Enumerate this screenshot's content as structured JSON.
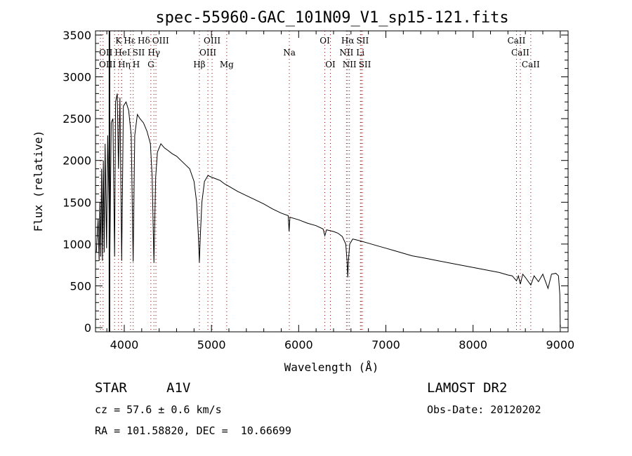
{
  "chart_data": {
    "type": "line",
    "title": "spec-55960-GAC_101N09_V1_sp15-121.fits",
    "xlabel": "Wavelength (Å)",
    "ylabel": "Flux (relative)",
    "xlim": [
      3670,
      9090
    ],
    "ylim": [
      -50,
      3550
    ],
    "x_ticks": [
      4000,
      5000,
      6000,
      7000,
      8000,
      9000
    ],
    "y_ticks": [
      0,
      500,
      1000,
      1500,
      2000,
      2500,
      3000,
      3500
    ],
    "grid": false,
    "line_color": "#000000",
    "marker_color": "#8b0000",
    "solid_line_wavelength": 3830,
    "series": [
      {
        "name": "spectrum",
        "x": [
          3680,
          3700,
          3712,
          3720,
          3730,
          3740,
          3750,
          3760,
          3770,
          3780,
          3797,
          3810,
          3835,
          3850,
          3870,
          3889,
          3900,
          3920,
          3933,
          3950,
          3970,
          3990,
          4020,
          4050,
          4080,
          4102,
          4120,
          4150,
          4180,
          4220,
          4260,
          4300,
          4320,
          4340,
          4360,
          4380,
          4420,
          4460,
          4500,
          4550,
          4600,
          4650,
          4700,
          4750,
          4800,
          4830,
          4850,
          4861,
          4872,
          4890,
          4920,
          4960,
          5000,
          5050,
          5100,
          5150,
          5200,
          5250,
          5300,
          5400,
          5500,
          5600,
          5700,
          5800,
          5880,
          5890,
          5900,
          6000,
          6100,
          6200,
          6280,
          6300,
          6320,
          6400,
          6450,
          6500,
          6540,
          6555,
          6563,
          6571,
          6585,
          6620,
          6700,
          6800,
          6900,
          7000,
          7100,
          7200,
          7300,
          7400,
          7500,
          7600,
          7700,
          7800,
          7900,
          8000,
          8100,
          8200,
          8300,
          8400,
          8450,
          8498,
          8520,
          8542,
          8570,
          8600,
          8662,
          8700,
          8750,
          8800,
          8860,
          8900,
          8950,
          8980,
          8995,
          9000
        ],
        "y": [
          900,
          1300,
          800,
          1500,
          850,
          1900,
          800,
          2000,
          900,
          2200,
          950,
          2300,
          900,
          2450,
          2500,
          850,
          2700,
          2800,
          1900,
          2750,
          800,
          2650,
          2700,
          2600,
          2300,
          790,
          2300,
          2550,
          2500,
          2450,
          2350,
          2200,
          1800,
          780,
          1800,
          2100,
          2200,
          2150,
          2120,
          2080,
          2050,
          2000,
          1950,
          1900,
          1750,
          1500,
          1100,
          780,
          1100,
          1500,
          1750,
          1820,
          1800,
          1780,
          1760,
          1720,
          1690,
          1660,
          1630,
          1580,
          1530,
          1480,
          1420,
          1370,
          1340,
          1150,
          1320,
          1290,
          1250,
          1220,
          1180,
          1100,
          1170,
          1150,
          1130,
          1090,
          1000,
          800,
          600,
          800,
          1000,
          1060,
          1040,
          1010,
          980,
          950,
          920,
          890,
          860,
          840,
          820,
          800,
          780,
          760,
          740,
          720,
          700,
          680,
          660,
          630,
          620,
          560,
          620,
          520,
          640,
          600,
          510,
          620,
          550,
          640,
          470,
          640,
          650,
          620,
          400,
          0
        ]
      }
    ],
    "annotations": [
      {
        "label": "Hε",
        "wavelength": 3970,
        "row": 0
      },
      {
        "label": "K",
        "wavelength": 3934,
        "row": 0
      },
      {
        "label": "Hδ",
        "wavelength": 4102,
        "row": 0
      },
      {
        "label": "OIII",
        "wavelength": 4363,
        "row": 0
      },
      {
        "label": "OIII",
        "wavelength": 5007,
        "row": 0
      },
      {
        "label": "OI",
        "wavelength": 6300,
        "row": 0
      },
      {
        "label": "Hα",
        "wavelength": 6563,
        "row": 0
      },
      {
        "label": "SII",
        "wavelength": 6717,
        "row": 0
      },
      {
        "label": "CaII",
        "wavelength": 8498,
        "row": 0
      },
      {
        "label": "OII",
        "wavelength": 3727,
        "row": 1
      },
      {
        "label": "HeI",
        "wavelength": 3889,
        "row": 1
      },
      {
        "label": "SII",
        "wavelength": 4072,
        "row": 1
      },
      {
        "label": "Hγ",
        "wavelength": 4340,
        "row": 1
      },
      {
        "label": "OIII",
        "wavelength": 4959,
        "row": 1
      },
      {
        "label": "Na",
        "wavelength": 5893,
        "row": 1
      },
      {
        "label": "NII",
        "wavelength": 6548,
        "row": 1
      },
      {
        "label": "Li",
        "wavelength": 6708,
        "row": 1
      },
      {
        "label": "CaII",
        "wavelength": 8542,
        "row": 1
      },
      {
        "label": "OIII",
        "wavelength": 3757,
        "row": 2
      },
      {
        "label": "Hη",
        "wavelength": 3835,
        "row": 2
      },
      {
        "label": "H",
        "wavelength": 3969,
        "row": 2
      },
      {
        "label": "G",
        "wavelength": 4305,
        "row": 2
      },
      {
        "label": "Hβ",
        "wavelength": 4861,
        "row": 2
      },
      {
        "label": "Mg",
        "wavelength": 5175,
        "row": 2
      },
      {
        "label": "OI",
        "wavelength": 6364,
        "row": 2
      },
      {
        "label": "NII",
        "wavelength": 6583,
        "row": 2
      },
      {
        "label": "SII",
        "wavelength": 6731,
        "row": 2
      },
      {
        "label": "CaII",
        "wavelength": 8662,
        "row": 2
      }
    ]
  },
  "info": {
    "class": "STAR",
    "subclass": "A1V",
    "survey": "LAMOST DR2",
    "cz": "cz = 57.6 ± 0.6 km/s",
    "obs_date": "Obs-Date: 20120202",
    "coords": "RA = 101.58820, DEC =  10.66699"
  }
}
